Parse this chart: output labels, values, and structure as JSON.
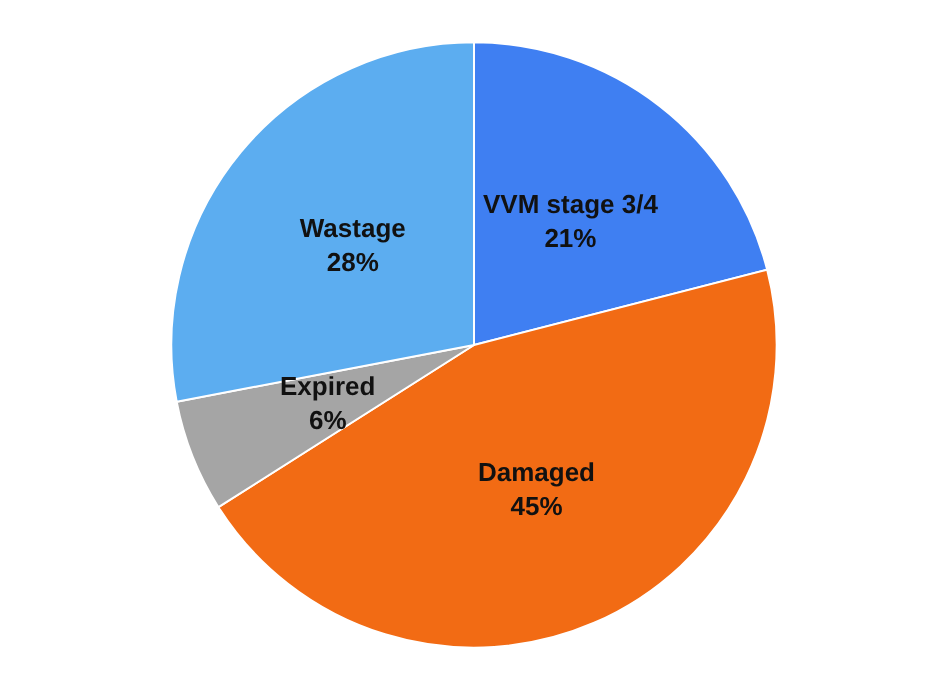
{
  "chart_data": {
    "type": "pie",
    "categories": [
      "VVM stage 3/4",
      "Damaged",
      "Expired",
      "Wastage"
    ],
    "values": [
      21,
      45,
      6,
      28
    ],
    "value_labels": [
      "21%",
      "45%",
      "6%",
      "28%"
    ],
    "colors": [
      "#3f7ff2",
      "#f26b14",
      "#a5a5a5",
      "#5cadf0"
    ],
    "legend": false
  }
}
